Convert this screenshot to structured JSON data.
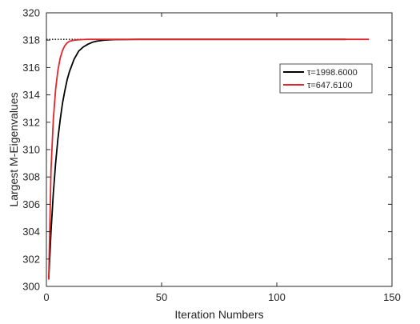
{
  "chart_data": {
    "type": "line",
    "title": "",
    "xlabel": "Iteration Numbers",
    "ylabel": "Largest M-Eigenvalues",
    "xlim": [
      0,
      150
    ],
    "ylim": [
      300,
      320
    ],
    "xticks": [
      0,
      50,
      100,
      150
    ],
    "yticks": [
      300,
      302,
      304,
      306,
      308,
      310,
      312,
      314,
      316,
      318,
      320
    ],
    "grid": false,
    "legend_position": "upper-right",
    "reference_line": {
      "y": 318.06,
      "style": "dotted",
      "color": "#000000"
    },
    "series": [
      {
        "name": "τ=1998.6000",
        "color": "#000000",
        "x": [
          1,
          2,
          3,
          4,
          5,
          6,
          7,
          8,
          9,
          10,
          12,
          14,
          16,
          18,
          20,
          22,
          25,
          28,
          30,
          35,
          40,
          50,
          60,
          80,
          100,
          130
        ],
        "y": [
          300.5,
          304.0,
          306.8,
          309.0,
          310.8,
          312.2,
          313.4,
          314.3,
          315.1,
          315.7,
          316.6,
          317.2,
          317.5,
          317.7,
          317.85,
          317.93,
          318.0,
          318.03,
          318.04,
          318.05,
          318.06,
          318.06,
          318.06,
          318.06,
          318.06,
          318.06
        ]
      },
      {
        "name": "τ=647.6100",
        "color": "#e3262b",
        "x": [
          1,
          2,
          3,
          4,
          5,
          6,
          7,
          8,
          9,
          10,
          12,
          14,
          16,
          18,
          20,
          25,
          30,
          40,
          60,
          80,
          100,
          120,
          140
        ],
        "y": [
          300.5,
          308.5,
          312.2,
          314.4,
          315.8,
          316.7,
          317.25,
          317.6,
          317.8,
          317.92,
          318.0,
          318.03,
          318.05,
          318.06,
          318.06,
          318.06,
          318.06,
          318.06,
          318.06,
          318.06,
          318.06,
          318.06,
          318.06
        ]
      }
    ]
  }
}
